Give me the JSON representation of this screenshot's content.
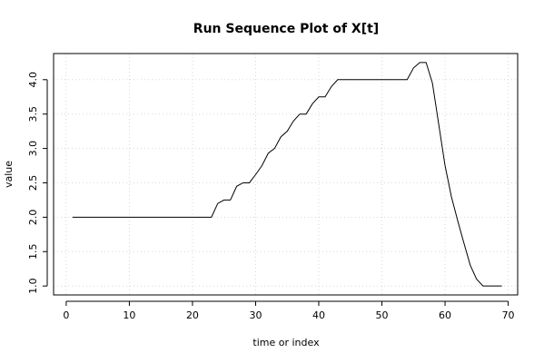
{
  "chart_data": {
    "type": "line",
    "title": "Run Sequence Plot of X[t]",
    "xlabel": "time or index",
    "ylabel": "value",
    "xlim": [
      -2,
      71.5
    ],
    "ylim": [
      0.87,
      4.38
    ],
    "grid": true,
    "xticks": [
      0,
      10,
      20,
      30,
      40,
      50,
      60,
      70
    ],
    "yticks": [
      1.0,
      1.5,
      2.0,
      2.5,
      3.0,
      3.5,
      4.0
    ],
    "xtick_labels": [
      "0",
      "10",
      "20",
      "30",
      "40",
      "50",
      "60",
      "70"
    ],
    "ytick_labels": [
      "1.0",
      "1.5",
      "2.0",
      "2.5",
      "3.0",
      "3.5",
      "4.0"
    ],
    "series": [
      {
        "x": [
          1,
          2,
          3,
          4,
          5,
          6,
          7,
          8,
          9,
          10,
          11,
          12,
          13,
          14,
          15,
          16,
          17,
          18,
          19,
          20,
          21,
          22,
          23,
          24,
          25,
          26,
          27,
          28,
          29,
          30,
          31,
          32,
          33,
          34,
          35,
          36,
          37,
          38,
          39,
          40,
          41,
          42,
          43,
          44,
          45,
          46,
          47,
          48,
          49,
          50,
          51,
          52,
          53,
          54,
          55,
          56,
          57,
          58,
          59,
          60,
          61,
          62,
          63,
          64,
          65,
          66,
          67,
          68,
          69
        ],
        "values": [
          2,
          2,
          2,
          2,
          2,
          2,
          2,
          2,
          2,
          2,
          2,
          2,
          2,
          2,
          2,
          2,
          2,
          2,
          2,
          2,
          2,
          2,
          2,
          2.2,
          2.25,
          2.25,
          2.45,
          2.5,
          2.5,
          2.62,
          2.75,
          2.93,
          3.0,
          3.17,
          3.25,
          3.4,
          3.5,
          3.5,
          3.65,
          3.75,
          3.75,
          3.9,
          4.0,
          4.0,
          4.0,
          4.0,
          4.0,
          4.0,
          4.0,
          4.0,
          4.0,
          4.0,
          4.0,
          4.0,
          4.17,
          4.25,
          4.25,
          3.95,
          3.35,
          2.75,
          2.3,
          1.95,
          1.62,
          1.3,
          1.1,
          1.0,
          1.0,
          1.0,
          1.0
        ]
      }
    ]
  }
}
